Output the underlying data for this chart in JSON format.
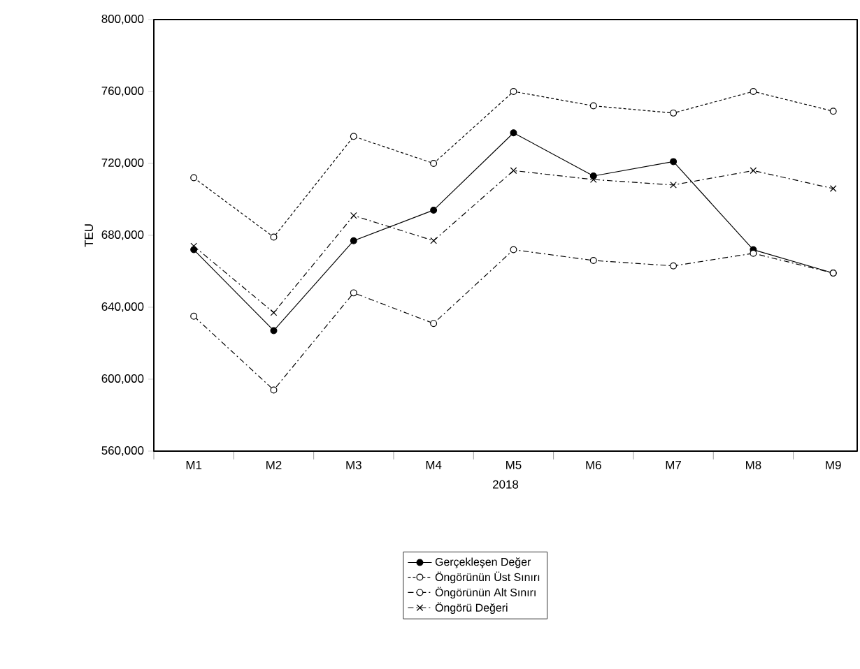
{
  "chart_data": {
    "type": "line",
    "xlabel": "2018",
    "ylabel": "TEU",
    "categories": [
      "M1",
      "M2",
      "M3",
      "M4",
      "M5",
      "M6",
      "M7",
      "M8",
      "M9"
    ],
    "series": [
      {
        "name": "Gerçekleşen Değer",
        "color": "#000000",
        "marker": "circle",
        "line_style": "solid",
        "values": [
          672000,
          627000,
          677000,
          694000,
          737000,
          713000,
          721000,
          672000,
          659000
        ]
      },
      {
        "name": "Öngörünün Üst Sınırı",
        "color": "#000000",
        "marker": "circle",
        "line_style": "dotted",
        "values": [
          712000,
          679000,
          735000,
          720000,
          760000,
          752000,
          748000,
          760000,
          749000
        ]
      },
      {
        "name": "Öngörünün Alt Sınırı",
        "color": "#000000",
        "marker": "circle",
        "line_style": "dashed",
        "values": [
          635000,
          594000,
          648000,
          631000,
          672000,
          666000,
          663000,
          670000,
          659000
        ]
      },
      {
        "name": "Öngörü Değeri",
        "color": "#000000",
        "marker": "cross",
        "line_style": "dashed",
        "values": [
          674000,
          637000,
          691000,
          677000,
          716000,
          711000,
          708000,
          716000,
          706000
        ]
      }
    ],
    "ylim": [
      560000,
      800000
    ],
    "yticks": [
      {
        "value": 560000,
        "label": "560,000"
      },
      {
        "value": 600000,
        "label": "600,000"
      },
      {
        "value": 640000,
        "label": "640,000"
      },
      {
        "value": 680000,
        "label": "680,000"
      },
      {
        "value": 720000,
        "label": "720,000"
      },
      {
        "value": 760000,
        "label": "760,000"
      },
      {
        "value": 800000,
        "label": "800,000"
      }
    ],
    "grid": false,
    "legend": "bottom"
  }
}
